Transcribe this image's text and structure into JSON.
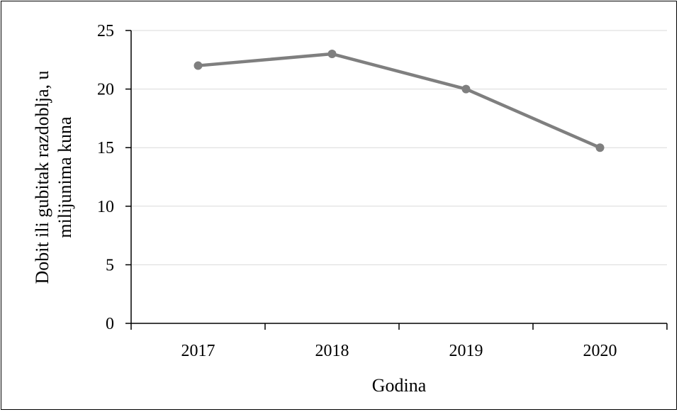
{
  "chart_data": {
    "type": "line",
    "title": "",
    "xlabel": "Godina",
    "ylabel_lines": [
      "Dobit ili gubitak razdoblja, u",
      "milijunima kuna"
    ],
    "categories": [
      "2017",
      "2018",
      "2019",
      "2020"
    ],
    "series": [
      {
        "values": [
          22,
          23,
          20,
          15
        ],
        "color": "#7f7f7f"
      }
    ],
    "ylim": [
      0,
      25
    ],
    "yticks": [
      0,
      5,
      10,
      15,
      20,
      25
    ],
    "grid": true,
    "legend": "none"
  }
}
